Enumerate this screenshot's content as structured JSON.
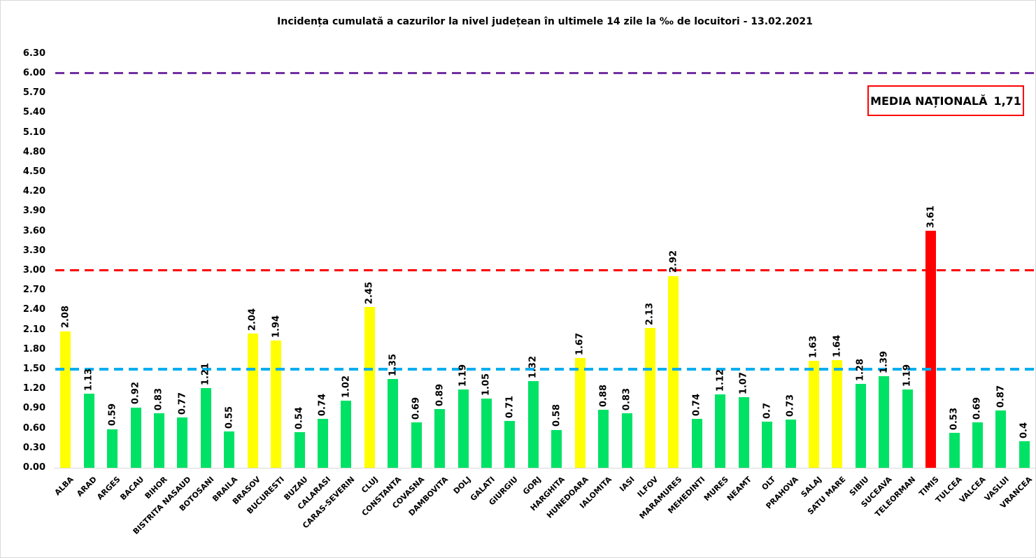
{
  "title": "Incidența cumulată a cazurilor la nivel județean în ultimele 14 zile la ‰ de locuitori - 13.02.2021",
  "national_average_box": {
    "label": "MEDIA NAȚIONALĂ",
    "value": "1,71",
    "border_color": "#FF0000"
  },
  "chart_data": {
    "type": "bar",
    "title": "Incidența cumulată a cazurilor la nivel județean în ultimele 14 zile la ‰ de locuitori - 13.02.2021",
    "categories": [
      "ALBA",
      "ARAD",
      "ARGES",
      "BACAU",
      "BIHOR",
      "BISTRITA NASAUD",
      "BOTOSANI",
      "BRAILA",
      "BRASOV",
      "BUCURESTI",
      "BUZAU",
      "CALARASI",
      "CARAS-SEVERIN",
      "CLUJ",
      "CONSTANTA",
      "COVASNA",
      "DAMBOVITA",
      "DOLJ",
      "GALATI",
      "GIURGIU",
      "GORJ",
      "HARGHITA",
      "HUNEDOARA",
      "IALOMITA",
      "IASI",
      "ILFOV",
      "MARAMURES",
      "MEHEDINTI",
      "MURES",
      "NEAMT",
      "OLT",
      "PRAHOVA",
      "SALAJ",
      "SATU MARE",
      "SIBIU",
      "SUCEAVA",
      "TELEORMAN",
      "TIMIS",
      "TULCEA",
      "VALCEA",
      "VASLUI",
      "VRANCEA"
    ],
    "values": [
      2.08,
      1.13,
      0.59,
      0.92,
      0.83,
      0.77,
      1.21,
      0.55,
      2.04,
      1.94,
      0.54,
      0.74,
      1.02,
      2.45,
      1.35,
      0.69,
      0.89,
      1.19,
      1.05,
      0.71,
      1.32,
      0.58,
      1.67,
      0.88,
      0.83,
      2.13,
      2.92,
      0.74,
      1.12,
      1.07,
      0.7,
      0.73,
      1.63,
      1.64,
      1.28,
      1.39,
      1.19,
      3.61,
      0.53,
      0.69,
      0.87,
      0.4
    ],
    "bar_colors": [
      "yellow",
      "green",
      "green",
      "green",
      "green",
      "green",
      "green",
      "green",
      "yellow",
      "yellow",
      "green",
      "green",
      "green",
      "yellow",
      "green",
      "green",
      "green",
      "green",
      "green",
      "green",
      "green",
      "green",
      "yellow",
      "green",
      "green",
      "yellow",
      "yellow",
      "green",
      "green",
      "green",
      "green",
      "green",
      "yellow",
      "yellow",
      "green",
      "green",
      "green",
      "red",
      "green",
      "green",
      "green",
      "green"
    ],
    "palette": {
      "green": "#00E266",
      "yellow": "#FFFF00",
      "red": "#FF0000"
    },
    "ylim": [
      0,
      6.3
    ],
    "ytick_step": 0.3,
    "ytick_labels": [
      "0.00",
      "0.30",
      "0.60",
      "0.90",
      "1.20",
      "1.50",
      "1.80",
      "2.10",
      "2.40",
      "2.70",
      "3.00",
      "3.30",
      "3.60",
      "3.90",
      "4.20",
      "4.50",
      "4.80",
      "5.10",
      "5.40",
      "5.70",
      "6.00",
      "6.30"
    ],
    "grid": false,
    "legend": false,
    "category_label_rotation": -45,
    "value_label_rotation": -90,
    "reference_lines": [
      {
        "value": 6.0,
        "color": "#7030A0",
        "style": "dashed",
        "thickness": 3
      },
      {
        "value": 3.0,
        "color": "#FF0000",
        "style": "dashed",
        "thickness": 3
      },
      {
        "value": 1.5,
        "color": "#00AEEF",
        "style": "dashed",
        "thickness": 4
      }
    ]
  }
}
